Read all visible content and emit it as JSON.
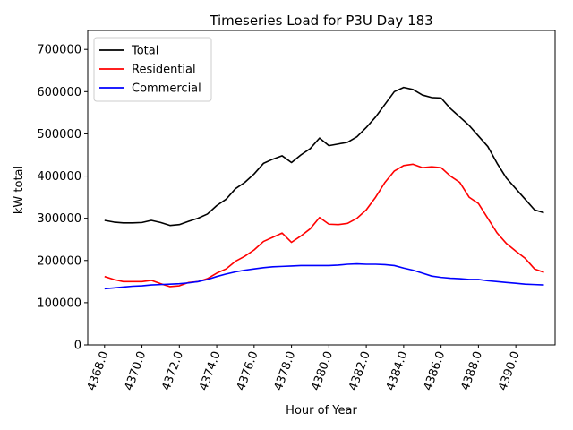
{
  "chart_data": {
    "type": "line",
    "title": "Timeseries Load for P3U   Day 183",
    "xlabel": "Hour of Year",
    "ylabel": "kW total",
    "xlim": [
      4367.1,
      4392.1
    ],
    "ylim": [
      0,
      745000
    ],
    "xticks": [
      4368,
      4370,
      4372,
      4374,
      4376,
      4378,
      4380,
      4382,
      4384,
      4386,
      4388,
      4390
    ],
    "xtick_labels": [
      "4368.0",
      "4370.0",
      "4372.0",
      "4374.0",
      "4376.0",
      "4378.0",
      "4380.0",
      "4382.0",
      "4384.0",
      "4386.0",
      "4388.0",
      "4390.0"
    ],
    "yticks": [
      0,
      100000,
      200000,
      300000,
      400000,
      500000,
      600000,
      700000
    ],
    "ytick_labels": [
      "0",
      "100000",
      "200000",
      "300000",
      "400000",
      "500000",
      "600000",
      "700000"
    ],
    "legend_position": "top-left",
    "series": [
      {
        "name": "Total",
        "color": "#000000",
        "x": [
          4368,
          4368.5,
          4369,
          4369.5,
          4370,
          4370.5,
          4371,
          4371.5,
          4372,
          4372.5,
          4373,
          4373.5,
          4374,
          4374.5,
          4375,
          4375.5,
          4376,
          4376.5,
          4377,
          4377.5,
          4378,
          4378.5,
          4379,
          4379.5,
          4380,
          4380.5,
          4381,
          4381.5,
          4382,
          4382.5,
          4383,
          4383.5,
          4384,
          4384.5,
          4385,
          4385.5,
          4386,
          4386.5,
          4387,
          4387.5,
          4388,
          4388.5,
          4389,
          4389.5,
          4390,
          4390.5,
          4391,
          4391.5
        ],
        "values": [
          295000,
          291000,
          289000,
          289000,
          290000,
          295000,
          290000,
          283000,
          285000,
          293000,
          300000,
          310000,
          330000,
          345000,
          370000,
          385000,
          405000,
          430000,
          440000,
          448000,
          432000,
          450000,
          465000,
          490000,
          472000,
          476000,
          480000,
          493000,
          515000,
          540000,
          570000,
          600000,
          610000,
          605000,
          592000,
          586000,
          585000,
          560000,
          540000,
          520000,
          495000,
          470000,
          430000,
          395000,
          370000,
          345000,
          320000,
          313000
        ]
      },
      {
        "name": "Residential",
        "color": "#ff0000",
        "x": [
          4368,
          4368.5,
          4369,
          4369.5,
          4370,
          4370.5,
          4371,
          4371.5,
          4372,
          4372.5,
          4373,
          4373.5,
          4374,
          4374.5,
          4375,
          4375.5,
          4376,
          4376.5,
          4377,
          4377.5,
          4378,
          4378.5,
          4379,
          4379.5,
          4380,
          4380.5,
          4381,
          4381.5,
          4382,
          4382.5,
          4383,
          4383.5,
          4384,
          4384.5,
          4385,
          4385.5,
          4386,
          4386.5,
          4387,
          4387.5,
          4388,
          4388.5,
          4389,
          4389.5,
          4390,
          4390.5,
          4391,
          4391.5
        ],
        "values": [
          162000,
          155000,
          150000,
          150000,
          150000,
          153000,
          145000,
          138000,
          140000,
          148000,
          150000,
          157000,
          170000,
          180000,
          198000,
          210000,
          225000,
          245000,
          255000,
          265000,
          243000,
          258000,
          275000,
          302000,
          286000,
          285000,
          288000,
          300000,
          320000,
          350000,
          385000,
          412000,
          425000,
          428000,
          420000,
          422000,
          420000,
          400000,
          385000,
          350000,
          335000,
          300000,
          265000,
          240000,
          222000,
          205000,
          180000,
          172000
        ]
      },
      {
        "name": "Commercial",
        "color": "#0000ff",
        "x": [
          4368,
          4368.5,
          4369,
          4369.5,
          4370,
          4370.5,
          4371,
          4371.5,
          4372,
          4372.5,
          4373,
          4373.5,
          4374,
          4374.5,
          4375,
          4375.5,
          4376,
          4376.5,
          4377,
          4377.5,
          4378,
          4378.5,
          4379,
          4379.5,
          4380,
          4380.5,
          4381,
          4381.5,
          4382,
          4382.5,
          4383,
          4383.5,
          4384,
          4384.5,
          4385,
          4385.5,
          4386,
          4386.5,
          4387,
          4387.5,
          4388,
          4388.5,
          4389,
          4389.5,
          4390,
          4390.5,
          4391,
          4391.5
        ],
        "values": [
          133000,
          135000,
          137000,
          139000,
          140000,
          142000,
          143000,
          144000,
          145000,
          147000,
          150000,
          155000,
          162000,
          168000,
          173000,
          177000,
          180000,
          183000,
          185000,
          186000,
          187000,
          188000,
          188000,
          188000,
          188000,
          189000,
          191000,
          192000,
          191000,
          191000,
          190000,
          188000,
          182000,
          177000,
          170000,
          163000,
          160000,
          158000,
          157000,
          155000,
          155000,
          152000,
          150000,
          148000,
          146000,
          144000,
          143000,
          142000
        ]
      }
    ]
  }
}
